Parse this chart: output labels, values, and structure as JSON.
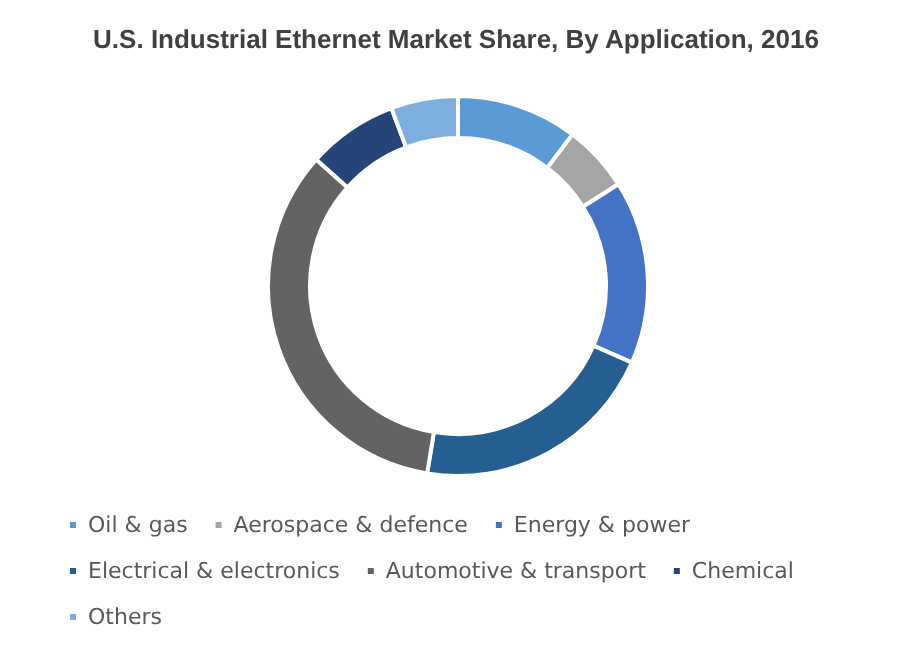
{
  "chart_data": {
    "type": "donut",
    "title": "U.S. Industrial Ethernet Market Share, By Application, 2016",
    "categories": [
      "Oil & gas",
      "Aerospace & defence",
      "Energy & power",
      "Electrical & electronics",
      "Automotive & transport",
      "Chemical",
      "Others"
    ],
    "values": [
      10.3,
      5.7,
      15.6,
      21.0,
      34.0,
      7.7,
      5.7
    ],
    "colors": [
      "#5b9bd5",
      "#a5a5a5",
      "#4472c4",
      "#255e91",
      "#636363",
      "#264478",
      "#7cafdd"
    ],
    "legend": "bottom"
  }
}
